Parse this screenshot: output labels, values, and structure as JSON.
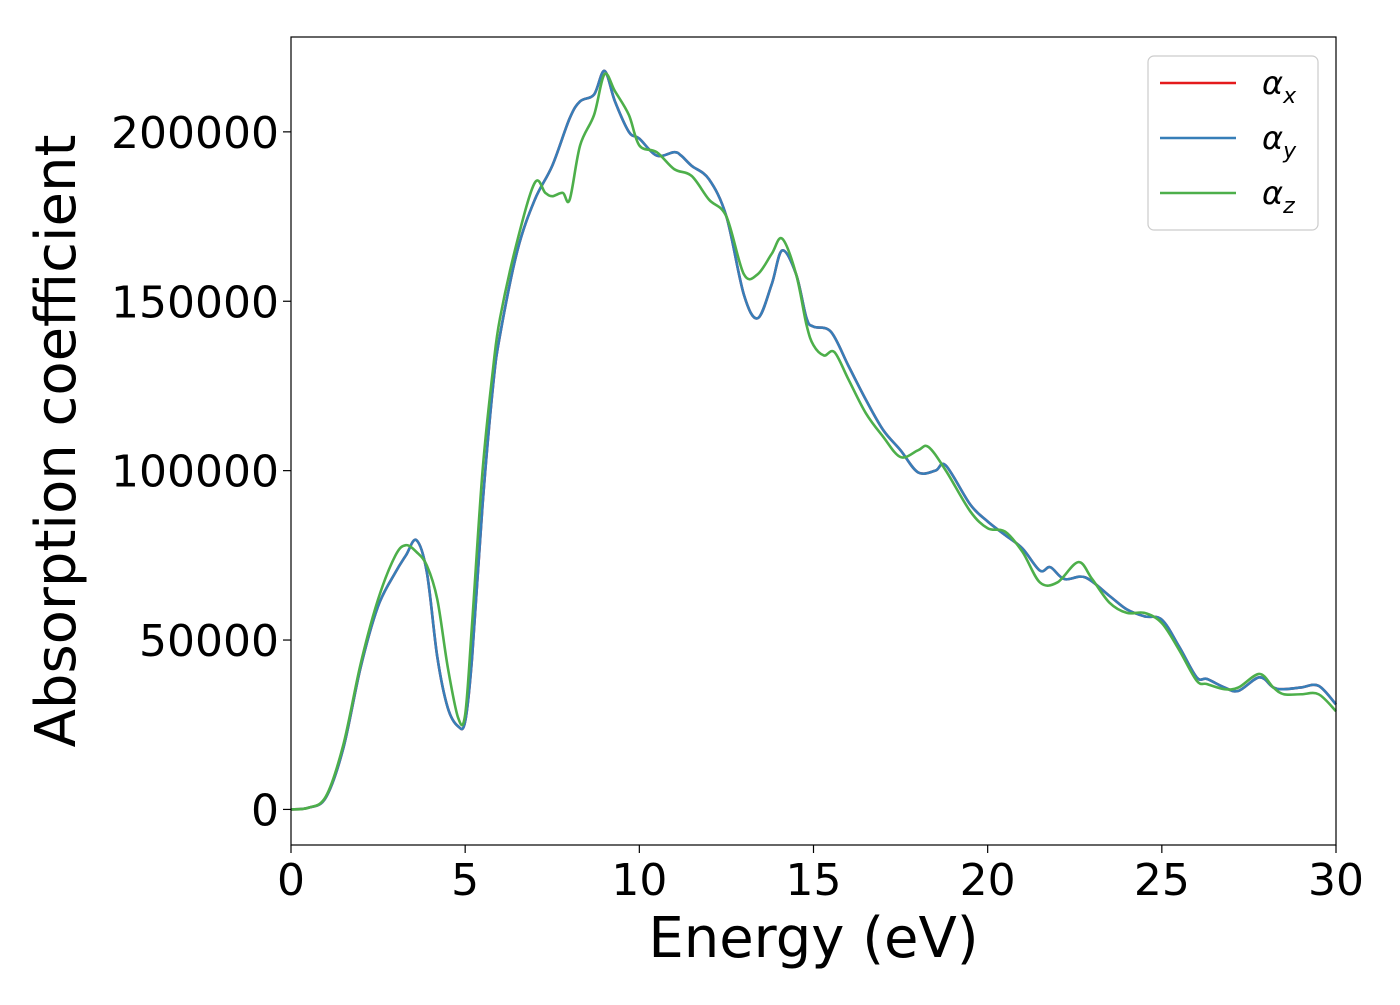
{
  "chart_data": {
    "type": "line",
    "title": "",
    "xlabel": "Energy (eV)",
    "ylabel": "Absorption coefficient",
    "xlim": [
      0,
      30
    ],
    "ylim": [
      -10500,
      228000
    ],
    "xticks": [
      0,
      5,
      10,
      15,
      20,
      25,
      30
    ],
    "yticks": [
      0,
      50000,
      100000,
      150000,
      200000
    ],
    "xtick_labels": [
      "0",
      "5",
      "10",
      "15",
      "20",
      "25",
      "30"
    ],
    "ytick_labels": [
      "0",
      "50000",
      "100000",
      "150000",
      "200000"
    ],
    "grid": false,
    "legend_position": "top-right",
    "series": [
      {
        "name": "αx",
        "legend_symbol": "α",
        "legend_subscript": "x",
        "color": "#e41a1c",
        "x": [
          0,
          0.5,
          1,
          1.5,
          2,
          2.5,
          3,
          3.3,
          3.6,
          3.9,
          4.2,
          4.5,
          4.8,
          5.0,
          5.2,
          5.5,
          5.8,
          6.0,
          6.5,
          7.0,
          7.5,
          8.0,
          8.3,
          8.7,
          9.0,
          9.3,
          9.7,
          10.0,
          10.5,
          11.0,
          11.2,
          11.5,
          12.0,
          12.5,
          13.0,
          13.4,
          13.8,
          14.1,
          14.5,
          14.8,
          15.0,
          15.5,
          16.0,
          16.5,
          17.0,
          17.5,
          18.0,
          18.5,
          18.8,
          19.5,
          20.0,
          20.5,
          21.0,
          21.5,
          21.8,
          22.2,
          22.8,
          23.5,
          24.0,
          24.5,
          25.0,
          25.5,
          26.0,
          26.3,
          26.8,
          27.2,
          27.8,
          28.2,
          28.5,
          29.0,
          29.5,
          30.0
        ],
        "y": [
          0,
          500,
          3500,
          18000,
          42000,
          60000,
          70000,
          75000,
          79500,
          70000,
          45000,
          30000,
          24500,
          26000,
          45000,
          90000,
          125000,
          140000,
          165000,
          180000,
          190000,
          204000,
          209000,
          211000,
          218000,
          209000,
          200000,
          198000,
          193000,
          194000,
          193000,
          190000,
          186000,
          175000,
          152000,
          145000,
          155000,
          165000,
          158000,
          145000,
          142500,
          141000,
          131000,
          121000,
          112000,
          106000,
          99500,
          100000,
          101500,
          90000,
          85000,
          81000,
          77000,
          70500,
          71500,
          68000,
          68500,
          63000,
          59000,
          57000,
          56000,
          48000,
          39000,
          38500,
          36000,
          35000,
          39000,
          36000,
          35500,
          36000,
          36500,
          31000
        ]
      },
      {
        "name": "αy",
        "legend_symbol": "α",
        "legend_subscript": "y",
        "color": "#377eb8",
        "x": [
          0,
          0.5,
          1,
          1.5,
          2,
          2.5,
          3,
          3.3,
          3.6,
          3.9,
          4.2,
          4.5,
          4.8,
          5.0,
          5.2,
          5.5,
          5.8,
          6.0,
          6.5,
          7.0,
          7.5,
          8.0,
          8.3,
          8.7,
          9.0,
          9.3,
          9.7,
          10.0,
          10.5,
          11.0,
          11.2,
          11.5,
          12.0,
          12.5,
          13.0,
          13.4,
          13.8,
          14.1,
          14.5,
          14.8,
          15.0,
          15.5,
          16.0,
          16.5,
          17.0,
          17.5,
          18.0,
          18.5,
          18.8,
          19.5,
          20.0,
          20.5,
          21.0,
          21.5,
          21.8,
          22.2,
          22.8,
          23.5,
          24.0,
          24.5,
          25.0,
          25.5,
          26.0,
          26.3,
          26.8,
          27.2,
          27.8,
          28.2,
          28.5,
          29.0,
          29.5,
          30.0
        ],
        "y": [
          0,
          500,
          3500,
          18000,
          42000,
          60000,
          70000,
          75000,
          79500,
          70000,
          45000,
          30000,
          24500,
          26000,
          45000,
          90000,
          125000,
          140000,
          165000,
          180000,
          190000,
          204000,
          209000,
          211000,
          218000,
          209000,
          200000,
          198000,
          193000,
          194000,
          193000,
          190000,
          186000,
          175000,
          152000,
          145000,
          155000,
          165000,
          158000,
          145000,
          142500,
          141000,
          131000,
          121000,
          112000,
          106000,
          99500,
          100000,
          101500,
          90000,
          85000,
          81000,
          77000,
          70500,
          71500,
          68000,
          68500,
          63000,
          59000,
          57000,
          56000,
          48000,
          39000,
          38500,
          36000,
          35000,
          39000,
          36000,
          35500,
          36000,
          36500,
          31000
        ]
      },
      {
        "name": "αz",
        "legend_symbol": "α",
        "legend_subscript": "z",
        "color": "#4daf4a",
        "x": [
          0,
          0.5,
          1,
          1.5,
          2,
          2.5,
          3,
          3.3,
          3.6,
          3.9,
          4.2,
          4.5,
          4.8,
          5.0,
          5.2,
          5.5,
          5.8,
          6.0,
          6.5,
          7.0,
          7.3,
          7.5,
          7.8,
          8.0,
          8.3,
          8.7,
          9.0,
          9.3,
          9.7,
          10.0,
          10.5,
          11.0,
          11.5,
          12.0,
          12.5,
          13.0,
          13.4,
          13.8,
          14.1,
          14.5,
          14.8,
          15.0,
          15.3,
          15.6,
          16.0,
          16.5,
          17.0,
          17.5,
          18.0,
          18.3,
          18.8,
          19.5,
          20.0,
          20.5,
          21.0,
          21.5,
          22.0,
          22.6,
          23.0,
          23.5,
          24.0,
          24.5,
          25.0,
          25.5,
          26.0,
          26.3,
          26.8,
          27.2,
          27.8,
          28.2,
          28.5,
          29.0,
          29.5,
          30.0
        ],
        "y": [
          0,
          500,
          3800,
          19000,
          43000,
          62000,
          75000,
          78000,
          76000,
          72000,
          62000,
          42000,
          27000,
          28000,
          55000,
          100000,
          130000,
          145000,
          168000,
          185000,
          182000,
          181000,
          182000,
          180000,
          196000,
          205000,
          217000,
          212000,
          205000,
          196000,
          194000,
          189000,
          187000,
          180000,
          175000,
          158000,
          158000,
          164000,
          168500,
          158000,
          143000,
          137000,
          134000,
          135000,
          127000,
          117000,
          110000,
          104000,
          106000,
          107000,
          100000,
          88000,
          83000,
          82000,
          76000,
          67000,
          67000,
          73000,
          68000,
          61000,
          58000,
          58000,
          55000,
          47000,
          38000,
          37000,
          35500,
          36000,
          40000,
          36000,
          34000,
          34000,
          34000,
          29000
        ]
      }
    ]
  }
}
